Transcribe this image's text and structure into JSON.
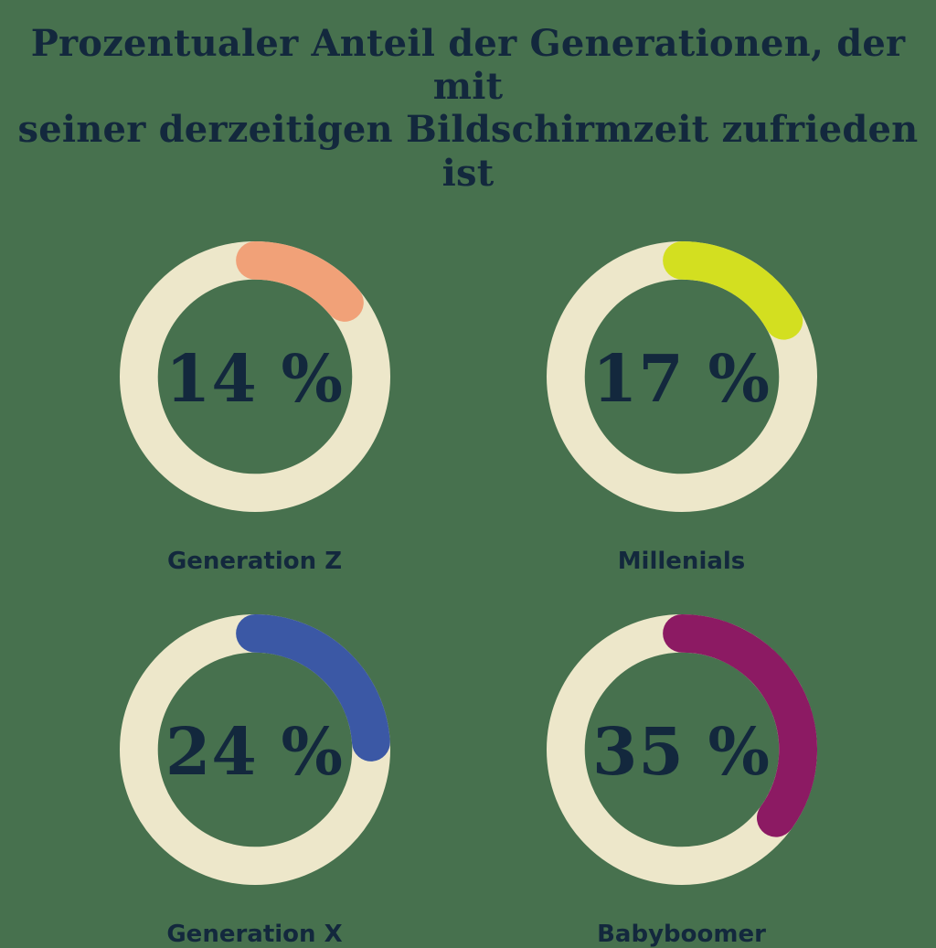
{
  "page": {
    "background_color": "#47714E",
    "text_color": "#13283D"
  },
  "title": {
    "text": "Prozentualer Anteil der Generationen, der mit seiner derzeitigen Bildschirmzeit zufrieden ist",
    "lines": [
      "Prozentualer Anteil der Generationen, der mit",
      "seiner derzeitigen Bildschirmzeit zufrieden ist"
    ]
  },
  "chart_data": {
    "type": "donut",
    "title": "Prozentualer Anteil der Generationen, der mit seiner derzeitigen Bildschirmzeit zufrieden ist",
    "unit": "%",
    "max_value": 100,
    "ring_track_color": "#EDE7CA",
    "arc_start": "top",
    "arc_direction": "clockwise",
    "arc_linecap": "round",
    "items": [
      {
        "label": "Generation Z",
        "value": 14,
        "value_label": "14 %",
        "color": "#F1A178"
      },
      {
        "label": "Millenials",
        "value": 17,
        "value_label": "17 %",
        "color": "#D3DF20"
      },
      {
        "label": "Generation X",
        "value": 24,
        "value_label": "24 %",
        "color": "#3B58A5"
      },
      {
        "label": "Babyboomer",
        "value": 35,
        "value_label": "35 %",
        "color": "#8C1A63"
      }
    ]
  }
}
